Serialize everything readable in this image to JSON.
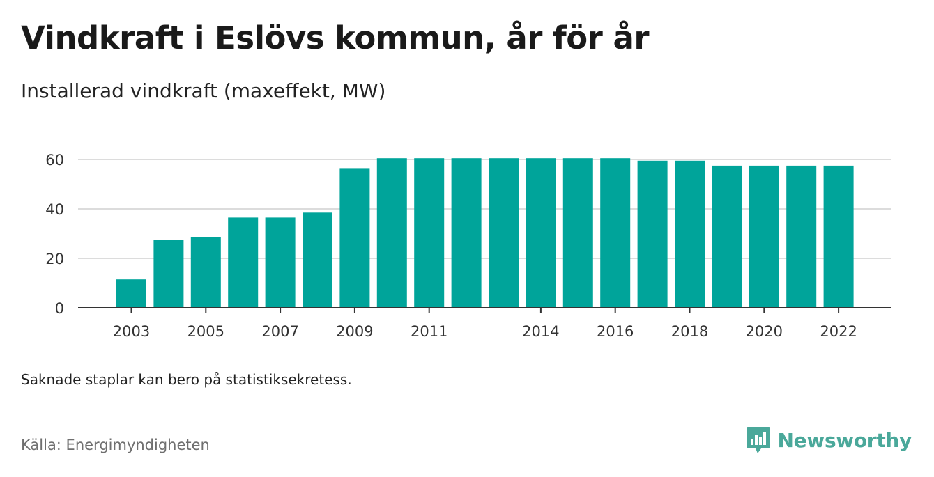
{
  "title": "Vindkraft i Eslövs kommun, år för år",
  "subtitle": "Installerad vindkraft (maxeffekt, MW)",
  "note": "Saknade staplar kan bero på statistiksekretess.",
  "source": "Källa: Energimyndigheten",
  "brand": {
    "name": "Newsworthy",
    "icon": "newsworthy-logo-icon",
    "color": "#4aa89a"
  },
  "chart_data": {
    "type": "bar",
    "categories": [
      "2003",
      "2004",
      "2005",
      "2006",
      "2007",
      "2008",
      "2009",
      "2010",
      "2011",
      "2012",
      "2013",
      "2014",
      "2015",
      "2016",
      "2017",
      "2018",
      "2019",
      "2020",
      "2021",
      "2022"
    ],
    "values": [
      11.5,
      27.5,
      28.5,
      36.5,
      36.5,
      38.5,
      56.5,
      60.5,
      60.5,
      60.5,
      60.5,
      60.5,
      60.5,
      60.5,
      59.5,
      59.5,
      57.5,
      57.5,
      57.5,
      57.5
    ],
    "x_tick_labels": [
      "2003",
      "2005",
      "2007",
      "2009",
      "2011",
      "2014",
      "2016",
      "2018",
      "2020",
      "2022"
    ],
    "y_ticks": [
      0,
      20,
      40,
      60
    ],
    "ylim": [
      0,
      60
    ],
    "xlabel": "",
    "ylabel": "",
    "grid": true,
    "bar_color": "#00a49a"
  }
}
